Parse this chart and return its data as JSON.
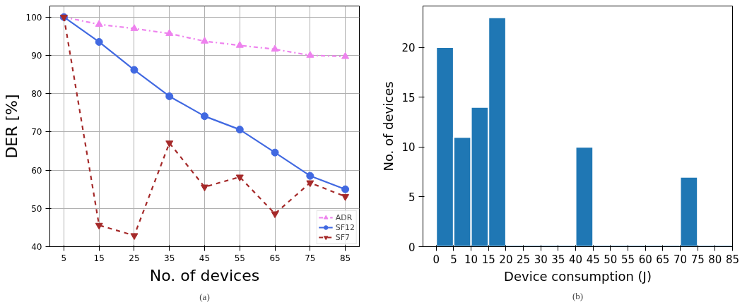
{
  "chart_data": [
    {
      "type": "line",
      "xlabel": "No. of devices",
      "ylabel": "DER [%]",
      "x": [
        5,
        15,
        25,
        35,
        45,
        55,
        65,
        75,
        85
      ],
      "series": [
        {
          "name": "ADR",
          "color": "#ee82ee",
          "marker": "triangle",
          "line_style": "dashdot",
          "values": [
            100,
            98.1,
            97.0,
            95.7,
            93.7,
            92.6,
            91.6,
            90.0,
            89.7
          ]
        },
        {
          "name": "SF12",
          "color": "#4169e1",
          "marker": "circle",
          "line_style": "solid",
          "values": [
            100,
            93.5,
            86.2,
            79.3,
            74.1,
            70.6,
            64.6,
            58.5,
            55.0
          ]
        },
        {
          "name": "SF7",
          "color": "#a52a2a",
          "marker": "triangle_down",
          "line_style": "dashed",
          "values": [
            100,
            45.6,
            42.9,
            67.1,
            55.6,
            58.2,
            48.6,
            56.7,
            53.1
          ]
        }
      ],
      "xlim": [
        1,
        89
      ],
      "xticks": [
        5,
        15,
        25,
        35,
        45,
        55,
        65,
        75,
        85
      ],
      "ylim": [
        40,
        102.9
      ],
      "yticks": [
        40,
        50,
        60,
        70,
        80,
        90,
        100
      ],
      "grid": true,
      "legend": "bottom right",
      "annotations": [
        "(a)"
      ]
    },
    {
      "type": "histogram",
      "xlabel": "Device consumption (J)",
      "ylabel": "No. of devices",
      "color": "#1f77b4",
      "bins": [
        0,
        5,
        10,
        15,
        20,
        25,
        30,
        35,
        40,
        45,
        50,
        55,
        60,
        65,
        70,
        75,
        80,
        85
      ],
      "values": [
        20,
        11,
        14,
        23,
        0,
        0,
        0,
        0,
        10,
        0,
        0,
        0,
        0,
        0,
        7,
        0,
        0
      ],
      "xlim": [
        -3.8,
        85
      ],
      "xticks": [
        0,
        5,
        10,
        15,
        20,
        25,
        30,
        35,
        40,
        45,
        50,
        55,
        60,
        65,
        70,
        75,
        80,
        85
      ],
      "ylim": [
        0,
        24.15
      ],
      "yticks": [
        0,
        5,
        10,
        15,
        20
      ],
      "grid": false,
      "annotations": [
        "(b)"
      ]
    }
  ]
}
